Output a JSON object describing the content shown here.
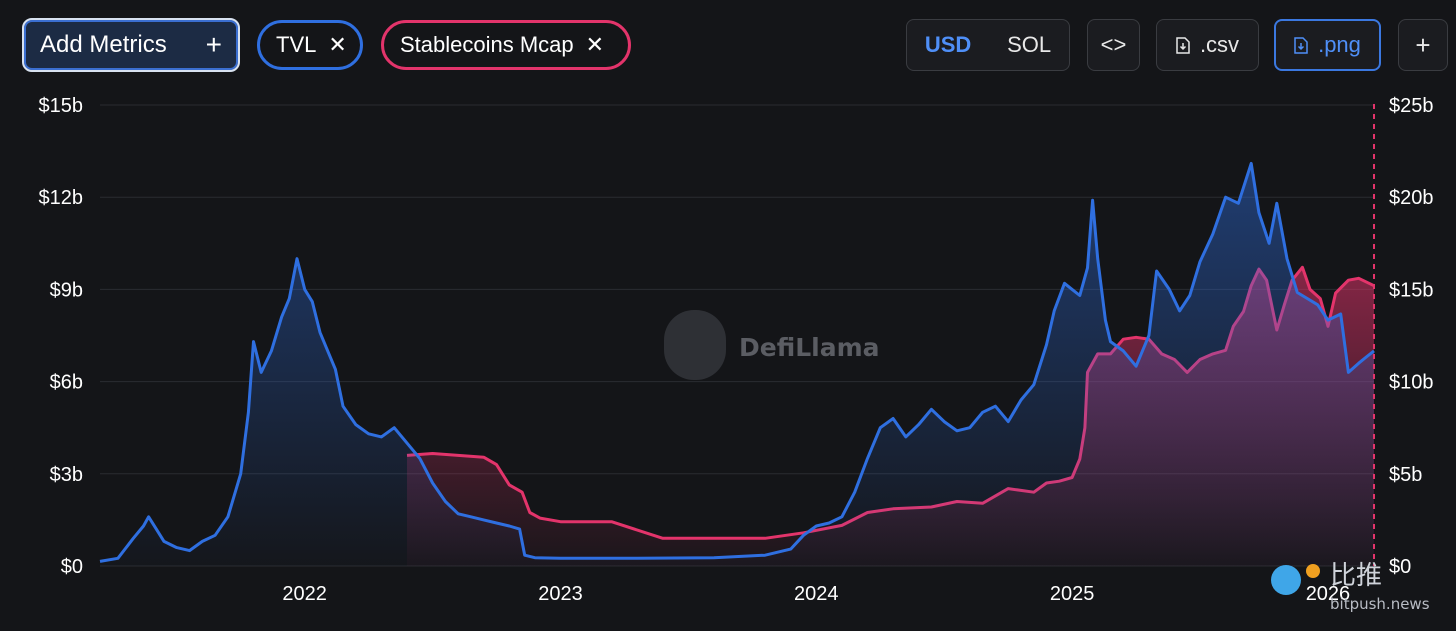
{
  "toolbar": {
    "add_metrics_label": "Add Metrics",
    "add_icon": "plus-icon",
    "chips": [
      {
        "label": "TVL",
        "color": "#2f6fe0"
      },
      {
        "label": "Stablecoins Mcap",
        "color": "#e3346b"
      }
    ],
    "currency_options": [
      "USD",
      "SOL"
    ],
    "currency_selected": "USD",
    "embed_icon": "code-icon",
    "csv_label": ".csv",
    "png_label": ".png",
    "more_icon": "plus-icon"
  },
  "watermark": "DefiLlama",
  "source_badge": {
    "brand": "比推",
    "url": "bitpush.news"
  },
  "chart_data": {
    "type": "area",
    "x_axis": {
      "ticks": [
        "2022",
        "2023",
        "2024",
        "2025",
        "2026"
      ],
      "range": [
        2021.2,
        2026.18
      ]
    },
    "y_left": {
      "ticks": [
        "$0",
        "$3b",
        "$6b",
        "$9b",
        "$12b",
        "$15b"
      ],
      "range": [
        0,
        15
      ]
    },
    "y_right": {
      "ticks": [
        "$0",
        "$5b",
        "$10b",
        "$15b",
        "$20b",
        "$25b"
      ],
      "range": [
        0,
        25
      ]
    },
    "grid": true,
    "series": [
      {
        "name": "TVL",
        "axis": "left",
        "color": "#2f6fe0",
        "points": [
          [
            2021.2,
            0.15
          ],
          [
            2021.27,
            0.25
          ],
          [
            2021.33,
            0.9
          ],
          [
            2021.37,
            1.3
          ],
          [
            2021.39,
            1.6
          ],
          [
            2021.42,
            1.2
          ],
          [
            2021.45,
            0.8
          ],
          [
            2021.5,
            0.6
          ],
          [
            2021.55,
            0.5
          ],
          [
            2021.6,
            0.8
          ],
          [
            2021.65,
            1.0
          ],
          [
            2021.7,
            1.6
          ],
          [
            2021.75,
            3.0
          ],
          [
            2021.78,
            5.0
          ],
          [
            2021.8,
            7.3
          ],
          [
            2021.83,
            6.3
          ],
          [
            2021.87,
            7.0
          ],
          [
            2021.91,
            8.1
          ],
          [
            2021.94,
            8.7
          ],
          [
            2021.97,
            10.0
          ],
          [
            2022.0,
            9.0
          ],
          [
            2022.03,
            8.6
          ],
          [
            2022.06,
            7.6
          ],
          [
            2022.09,
            7.0
          ],
          [
            2022.12,
            6.4
          ],
          [
            2022.15,
            5.2
          ],
          [
            2022.2,
            4.6
          ],
          [
            2022.25,
            4.3
          ],
          [
            2022.3,
            4.2
          ],
          [
            2022.35,
            4.5
          ],
          [
            2022.4,
            4.0
          ],
          [
            2022.45,
            3.5
          ],
          [
            2022.5,
            2.7
          ],
          [
            2022.55,
            2.1
          ],
          [
            2022.6,
            1.7
          ],
          [
            2022.65,
            1.6
          ],
          [
            2022.7,
            1.5
          ],
          [
            2022.75,
            1.4
          ],
          [
            2022.8,
            1.3
          ],
          [
            2022.84,
            1.2
          ],
          [
            2022.86,
            0.35
          ],
          [
            2022.9,
            0.27
          ],
          [
            2023.0,
            0.25
          ],
          [
            2023.3,
            0.25
          ],
          [
            2023.6,
            0.27
          ],
          [
            2023.8,
            0.35
          ],
          [
            2023.9,
            0.55
          ],
          [
            2023.95,
            1.0
          ],
          [
            2024.0,
            1.3
          ],
          [
            2024.05,
            1.4
          ],
          [
            2024.1,
            1.6
          ],
          [
            2024.15,
            2.4
          ],
          [
            2024.2,
            3.5
          ],
          [
            2024.25,
            4.5
          ],
          [
            2024.3,
            4.8
          ],
          [
            2024.35,
            4.2
          ],
          [
            2024.4,
            4.6
          ],
          [
            2024.45,
            5.1
          ],
          [
            2024.5,
            4.7
          ],
          [
            2024.55,
            4.4
          ],
          [
            2024.6,
            4.5
          ],
          [
            2024.65,
            5.0
          ],
          [
            2024.7,
            5.2
          ],
          [
            2024.75,
            4.7
          ],
          [
            2024.8,
            5.4
          ],
          [
            2024.85,
            5.9
          ],
          [
            2024.9,
            7.2
          ],
          [
            2024.93,
            8.3
          ],
          [
            2024.97,
            9.2
          ],
          [
            2025.0,
            9.0
          ],
          [
            2025.03,
            8.8
          ],
          [
            2025.06,
            9.7
          ],
          [
            2025.08,
            11.9
          ],
          [
            2025.1,
            10.0
          ],
          [
            2025.13,
            8.0
          ],
          [
            2025.15,
            7.3
          ],
          [
            2025.2,
            7.0
          ],
          [
            2025.25,
            6.5
          ],
          [
            2025.3,
            7.5
          ],
          [
            2025.33,
            9.6
          ],
          [
            2025.38,
            9.0
          ],
          [
            2025.42,
            8.3
          ],
          [
            2025.46,
            8.8
          ],
          [
            2025.5,
            9.9
          ],
          [
            2025.55,
            10.8
          ],
          [
            2025.6,
            12.0
          ],
          [
            2025.65,
            11.8
          ],
          [
            2025.7,
            13.1
          ],
          [
            2025.73,
            11.5
          ],
          [
            2025.77,
            10.5
          ],
          [
            2025.8,
            11.8
          ],
          [
            2025.84,
            10.0
          ],
          [
            2025.88,
            8.9
          ],
          [
            2025.92,
            8.7
          ],
          [
            2025.96,
            8.5
          ],
          [
            2026.0,
            8.0
          ],
          [
            2026.05,
            8.2
          ],
          [
            2026.08,
            6.3
          ],
          [
            2026.12,
            6.6
          ],
          [
            2026.15,
            6.8
          ],
          [
            2026.18,
            7.0
          ]
        ]
      },
      {
        "name": "Stablecoins Mcap",
        "axis": "right",
        "color": "#e3346b",
        "points": [
          [
            2022.4,
            6.0
          ],
          [
            2022.5,
            6.1
          ],
          [
            2022.6,
            6.0
          ],
          [
            2022.7,
            5.9
          ],
          [
            2022.75,
            5.5
          ],
          [
            2022.8,
            4.4
          ],
          [
            2022.85,
            4.0
          ],
          [
            2022.88,
            2.9
          ],
          [
            2022.92,
            2.6
          ],
          [
            2023.0,
            2.4
          ],
          [
            2023.2,
            2.4
          ],
          [
            2023.4,
            1.5
          ],
          [
            2023.6,
            1.5
          ],
          [
            2023.8,
            1.5
          ],
          [
            2023.95,
            1.8
          ],
          [
            2024.1,
            2.2
          ],
          [
            2024.2,
            2.9
          ],
          [
            2024.3,
            3.1
          ],
          [
            2024.45,
            3.2
          ],
          [
            2024.55,
            3.5
          ],
          [
            2024.65,
            3.4
          ],
          [
            2024.75,
            4.2
          ],
          [
            2024.85,
            4.0
          ],
          [
            2024.9,
            4.5
          ],
          [
            2024.95,
            4.6
          ],
          [
            2025.0,
            4.8
          ],
          [
            2025.03,
            5.8
          ],
          [
            2025.05,
            7.5
          ],
          [
            2025.06,
            10.5
          ],
          [
            2025.1,
            11.5
          ],
          [
            2025.15,
            11.5
          ],
          [
            2025.2,
            12.3
          ],
          [
            2025.25,
            12.4
          ],
          [
            2025.3,
            12.3
          ],
          [
            2025.35,
            11.5
          ],
          [
            2025.4,
            11.2
          ],
          [
            2025.45,
            10.5
          ],
          [
            2025.5,
            11.2
          ],
          [
            2025.55,
            11.5
          ],
          [
            2025.6,
            11.7
          ],
          [
            2025.63,
            13.0
          ],
          [
            2025.67,
            13.8
          ],
          [
            2025.7,
            15.2
          ],
          [
            2025.73,
            16.1
          ],
          [
            2025.76,
            15.5
          ],
          [
            2025.8,
            12.8
          ],
          [
            2025.83,
            14.2
          ],
          [
            2025.86,
            15.5
          ],
          [
            2025.9,
            16.2
          ],
          [
            2025.93,
            15.0
          ],
          [
            2025.97,
            14.5
          ],
          [
            2026.0,
            13.0
          ],
          [
            2026.03,
            14.8
          ],
          [
            2026.08,
            15.5
          ],
          [
            2026.12,
            15.6
          ],
          [
            2026.18,
            15.2
          ]
        ]
      }
    ]
  }
}
